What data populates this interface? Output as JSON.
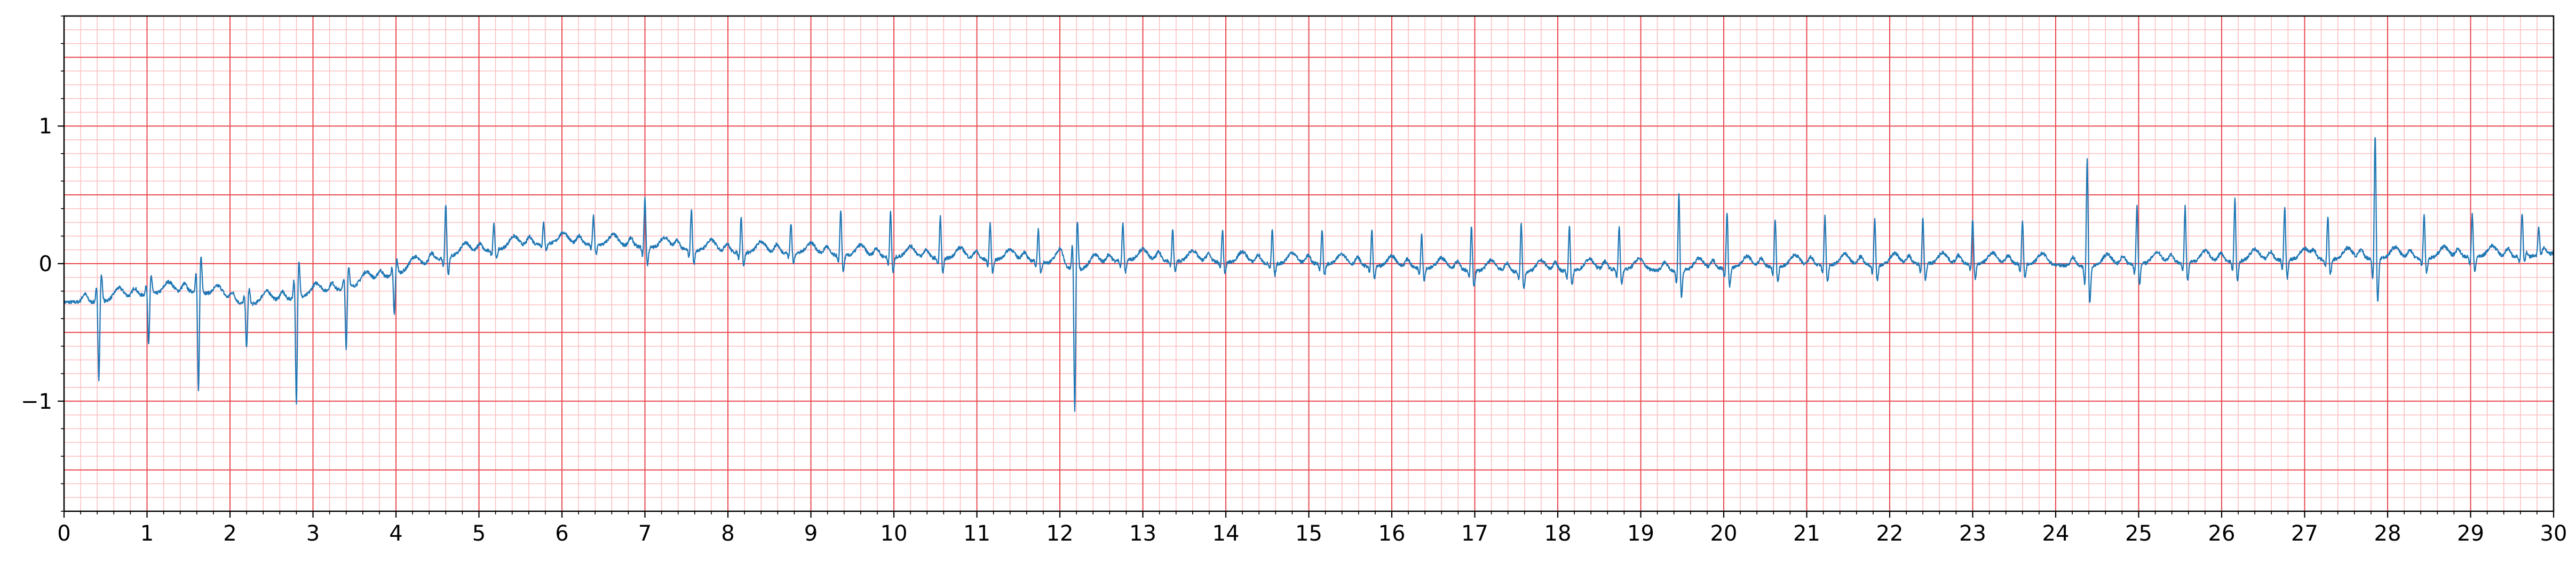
{
  "chart_data": {
    "type": "line",
    "title": "",
    "xlabel": "",
    "ylabel": "",
    "xlim": [
      0,
      30
    ],
    "ylim": [
      -1.8,
      1.8
    ],
    "grid": true,
    "x_ticks": [
      "0",
      "1",
      "2",
      "3",
      "4",
      "5",
      "6",
      "7",
      "8",
      "9",
      "10",
      "11",
      "12",
      "13",
      "14",
      "15",
      "16",
      "17",
      "18",
      "19",
      "20",
      "21",
      "22",
      "23",
      "24",
      "25",
      "26",
      "27",
      "28",
      "29",
      "30"
    ],
    "y_ticks": [
      {
        "value": 1,
        "label": "1"
      },
      {
        "value": 0,
        "label": "0"
      },
      {
        "value": -1,
        "label": "−1"
      }
    ],
    "colors": {
      "trace": "#1f77b4",
      "major_grid": "#e8484f",
      "minor_grid": "#ffb8bc"
    },
    "series": [
      {
        "beats": [
          [
            0.42,
            -0.28,
            -0.85
          ],
          [
            1.02,
            -0.22,
            -0.6
          ],
          [
            1.62,
            -0.2,
            -0.95
          ],
          [
            2.2,
            -0.3,
            -0.62
          ],
          [
            2.8,
            -0.25,
            -1.03
          ],
          [
            3.4,
            -0.18,
            -0.63
          ],
          [
            3.98,
            -0.08,
            -0.38
          ],
          [
            4.6,
            0.05,
            0.44
          ],
          [
            5.18,
            0.1,
            0.3
          ],
          [
            5.78,
            0.15,
            0.3
          ],
          [
            6.38,
            0.14,
            0.35
          ],
          [
            7.0,
            0.12,
            0.49
          ],
          [
            7.56,
            0.1,
            0.4
          ],
          [
            8.16,
            0.08,
            0.35
          ],
          [
            8.76,
            0.08,
            0.3
          ],
          [
            9.36,
            0.06,
            0.4
          ],
          [
            9.96,
            0.05,
            0.38
          ],
          [
            10.56,
            0.04,
            0.35
          ],
          [
            11.16,
            0.03,
            0.3
          ],
          [
            11.74,
            0.02,
            0.25
          ],
          [
            12.18,
            -0.05,
            -1.1
          ],
          [
            12.76,
            0.03,
            0.3
          ],
          [
            13.36,
            0.02,
            0.25
          ],
          [
            13.96,
            0.01,
            0.25
          ],
          [
            14.56,
            0.0,
            0.25
          ],
          [
            15.16,
            0.0,
            0.25
          ],
          [
            15.76,
            -0.02,
            0.25
          ],
          [
            16.36,
            -0.03,
            0.22
          ],
          [
            16.96,
            -0.05,
            0.28
          ],
          [
            17.56,
            -0.06,
            0.3
          ],
          [
            18.14,
            -0.05,
            0.28
          ],
          [
            18.74,
            -0.04,
            0.27
          ],
          [
            19.46,
            -0.05,
            0.52
          ],
          [
            20.04,
            -0.03,
            0.38
          ],
          [
            20.62,
            -0.02,
            0.33
          ],
          [
            21.22,
            -0.01,
            0.35
          ],
          [
            21.82,
            -0.01,
            0.33
          ],
          [
            22.4,
            0.0,
            0.34
          ],
          [
            23.0,
            0.0,
            0.33
          ],
          [
            23.6,
            0.0,
            0.32
          ],
          [
            24.38,
            -0.02,
            0.77
          ],
          [
            24.98,
            0.0,
            0.43
          ],
          [
            25.56,
            0.01,
            0.42
          ],
          [
            26.16,
            0.02,
            0.48
          ],
          [
            26.76,
            0.03,
            0.42
          ],
          [
            27.28,
            0.03,
            0.35
          ],
          [
            27.85,
            0.04,
            0.96
          ],
          [
            28.44,
            0.04,
            0.36
          ],
          [
            29.02,
            0.05,
            0.36
          ],
          [
            29.62,
            0.05,
            0.33
          ],
          [
            29.82,
            0.04,
            0.2
          ]
        ]
      }
    ]
  }
}
